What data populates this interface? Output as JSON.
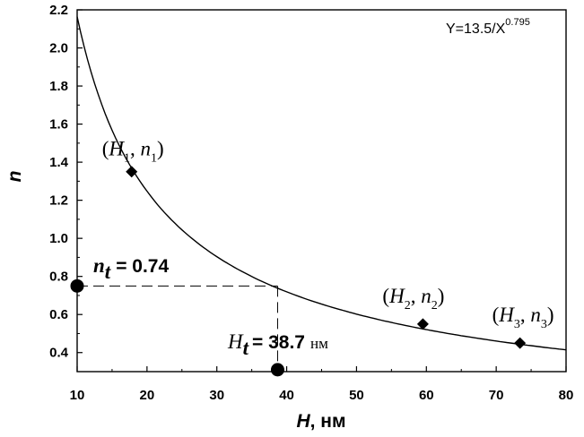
{
  "chart_data": {
    "type": "scatter",
    "xlabel_var": "H",
    "xlabel_unit": ", нм",
    "ylabel": "n",
    "xlim": [
      10,
      80
    ],
    "ylim": [
      0.3,
      2.2
    ],
    "xticks": [
      10,
      20,
      30,
      40,
      50,
      60,
      70,
      80
    ],
    "yticks": [
      0.4,
      0.6,
      0.8,
      1.0,
      1.2,
      1.4,
      1.6,
      1.8,
      2.0,
      2.2
    ],
    "grid": false,
    "fit": {
      "equation_base": "Y=13.5/X",
      "equation_exp": "0.795",
      "a": 13.5,
      "b": 0.795,
      "x_range": [
        10,
        80
      ]
    },
    "series": [
      {
        "marker": "diamond",
        "points": [
          {
            "x": 17.8,
            "y": 1.35,
            "label": "H",
            "sub1": "1",
            "label2": "n",
            "sub2": "1"
          },
          {
            "x": 59.5,
            "y": 0.55,
            "label": "H",
            "sub1": "2",
            "label2": "n",
            "sub2": "2"
          },
          {
            "x": 73.4,
            "y": 0.45,
            "label": "H",
            "sub1": "3",
            "label2": "n",
            "sub2": "3"
          }
        ]
      },
      {
        "marker": "circle",
        "points": [
          {
            "x": 10,
            "y": 0.75
          },
          {
            "x": 38.7,
            "y": 0.31
          }
        ]
      }
    ],
    "annotations": {
      "nt": {
        "var": "n",
        "sub": "t",
        "value": "= 0.74"
      },
      "ht": {
        "var": "H",
        "sub": "t",
        "value": "= 38.7",
        "unit": "нм"
      }
    },
    "guide": {
      "x": 38.7,
      "y": 0.75
    }
  }
}
